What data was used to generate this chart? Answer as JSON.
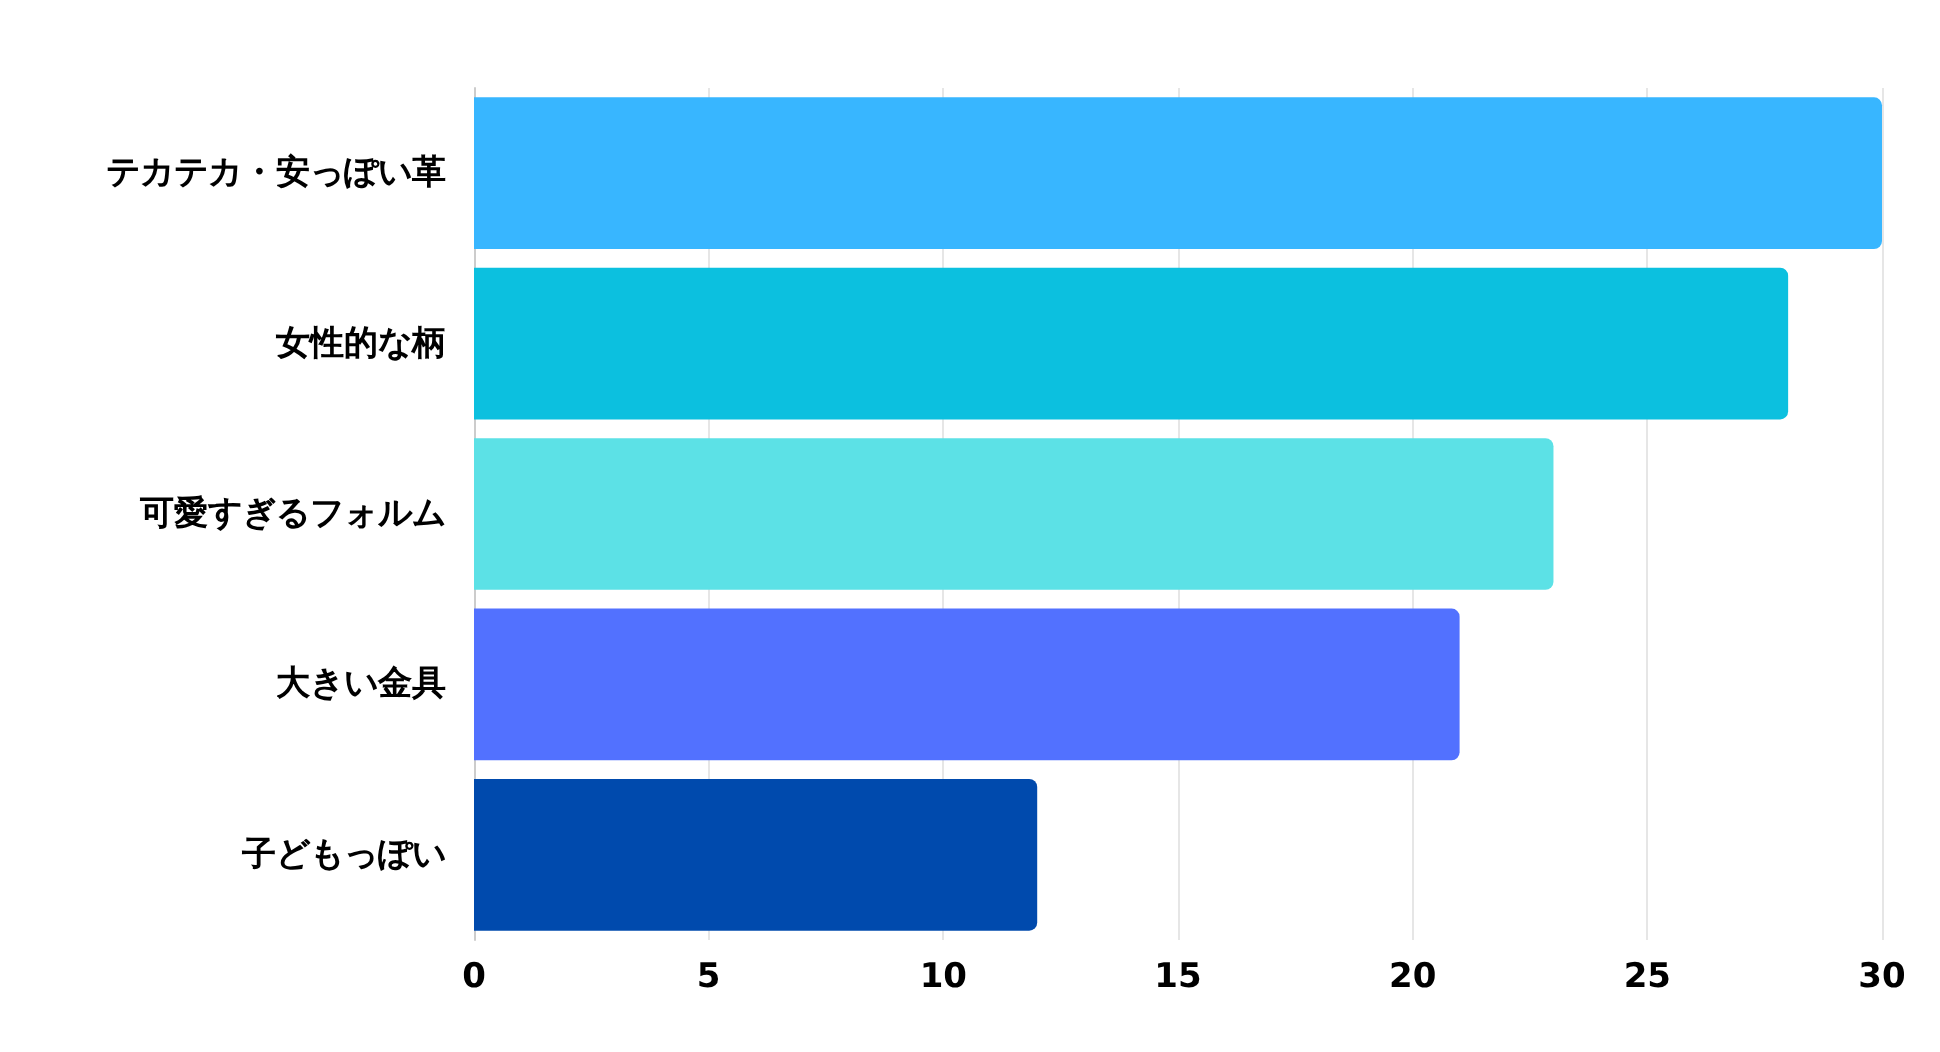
{
  "chart_data": {
    "type": "bar",
    "orientation": "horizontal",
    "categories": [
      "テカテカ・安っぽい革",
      "女性的な柄",
      "可愛すぎるフォルム",
      "大きい金具",
      "子どもっぽい"
    ],
    "values": [
      30,
      28,
      23,
      21,
      12
    ],
    "colors": [
      "#38b6ff",
      "#0cc0df",
      "#5ce1e6",
      "#5271ff",
      "#004aad"
    ],
    "xlim": [
      0,
      30
    ],
    "xticks": [
      0,
      5,
      10,
      15,
      20,
      25,
      30
    ],
    "grid": "x"
  }
}
